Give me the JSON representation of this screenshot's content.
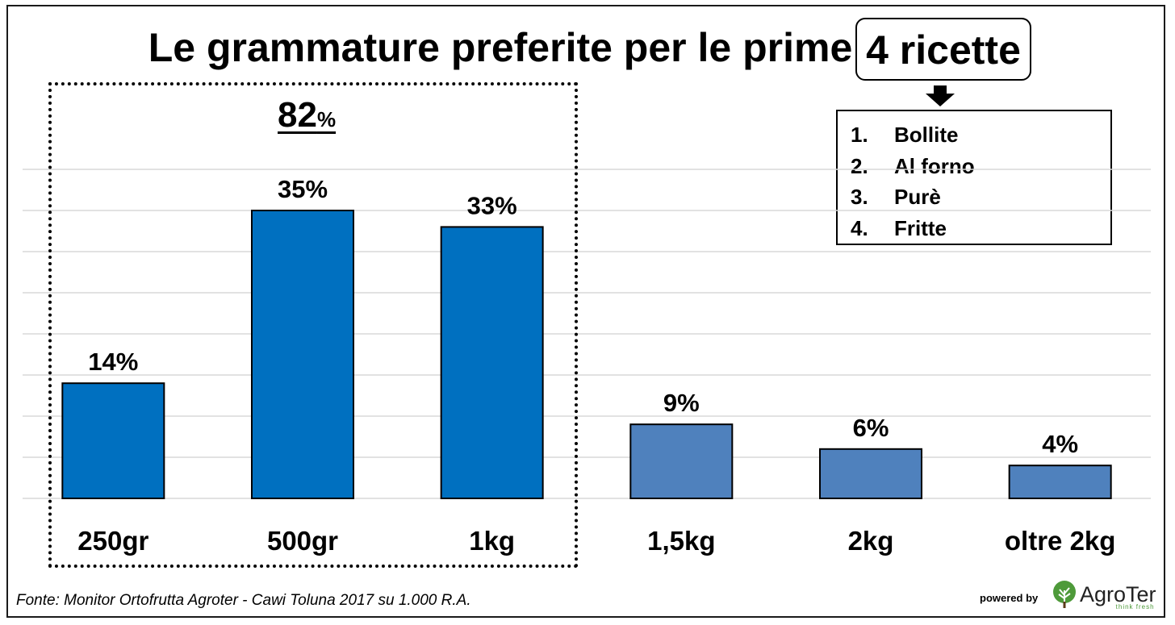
{
  "title_prefix": "Le grammature preferite per le prime",
  "title_boxed": "4 ricette",
  "recipes": [
    {
      "num": "1.",
      "label": "Bollite"
    },
    {
      "num": "2.",
      "label": "Al forno"
    },
    {
      "num": "3.",
      "label": "Purè"
    },
    {
      "num": "4.",
      "label": "Fritte"
    }
  ],
  "group_total": {
    "value": "82",
    "unit": "%"
  },
  "source": "Fonte: Monitor Ortofrutta Agroter - Cawi Toluna 2017 su 1.000 R.A.",
  "powered_by": "powered by",
  "logo": {
    "brand": "AgroTer",
    "tagline": "think fresh"
  },
  "colors": {
    "highlight_bar": "#0070C0",
    "other_bar": "#4F81BD",
    "grid": "#d9d9d9",
    "logo_green": "#4e9a3a"
  },
  "chart_data": {
    "type": "bar",
    "categories": [
      "250gr",
      "500gr",
      "1kg",
      "1,5kg",
      "2kg",
      "oltre 2kg"
    ],
    "values": [
      14,
      35,
      33,
      9,
      6,
      4
    ],
    "data_labels": [
      "14%",
      "35%",
      "33%",
      "9%",
      "6%",
      "4%"
    ],
    "highlighted": [
      true,
      true,
      true,
      false,
      false,
      false
    ],
    "title": "Le grammature preferite per le prime 4 ricette",
    "xlabel": "",
    "ylabel": "",
    "ylim": [
      0,
      40
    ],
    "grid": true,
    "legend": "none"
  }
}
